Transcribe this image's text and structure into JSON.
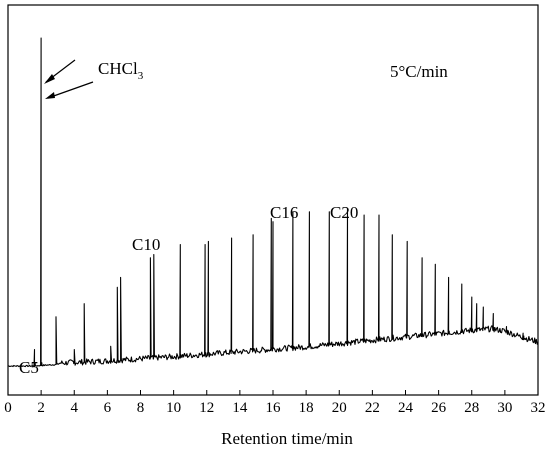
{
  "chart_data": {
    "type": "line",
    "title": "",
    "xlabel": "Retention time/min",
    "ylabel": "",
    "xlim": [
      0,
      32
    ],
    "ylim": [
      0,
      1.0
    ],
    "x_ticks": [
      0,
      2,
      4,
      6,
      8,
      10,
      12,
      14,
      16,
      18,
      20,
      22,
      24,
      26,
      28,
      30,
      32
    ],
    "grid": false,
    "annotations": {
      "condition": "5°C/min",
      "solvent": "CHCl",
      "solvent_subscript": "3",
      "peaks": [
        {
          "label": "C5",
          "x": 1.5
        },
        {
          "label": "C10",
          "x": 8.7
        },
        {
          "label": "C16",
          "x": 17.1
        },
        {
          "label": "C20",
          "x": 20.5
        }
      ]
    },
    "peaks": [
      {
        "x": 1.6,
        "y": 0.05
      },
      {
        "x": 2.0,
        "y": 1.0
      },
      {
        "x": 2.9,
        "y": 0.15
      },
      {
        "x": 4.0,
        "y": 0.05
      },
      {
        "x": 4.6,
        "y": 0.19
      },
      {
        "x": 6.2,
        "y": 0.06
      },
      {
        "x": 6.6,
        "y": 0.24
      },
      {
        "x": 6.8,
        "y": 0.27
      },
      {
        "x": 8.6,
        "y": 0.33
      },
      {
        "x": 8.8,
        "y": 0.34
      },
      {
        "x": 10.4,
        "y": 0.37
      },
      {
        "x": 11.9,
        "y": 0.37
      },
      {
        "x": 12.1,
        "y": 0.38
      },
      {
        "x": 13.5,
        "y": 0.39
      },
      {
        "x": 14.8,
        "y": 0.4
      },
      {
        "x": 15.9,
        "y": 0.45
      },
      {
        "x": 16.0,
        "y": 0.44
      },
      {
        "x": 17.2,
        "y": 0.47
      },
      {
        "x": 18.2,
        "y": 0.47
      },
      {
        "x": 19.4,
        "y": 0.47
      },
      {
        "x": 20.5,
        "y": 0.48
      },
      {
        "x": 21.5,
        "y": 0.46
      },
      {
        "x": 22.4,
        "y": 0.46
      },
      {
        "x": 23.2,
        "y": 0.4
      },
      {
        "x": 24.1,
        "y": 0.38
      },
      {
        "x": 25.0,
        "y": 0.33
      },
      {
        "x": 25.8,
        "y": 0.31
      },
      {
        "x": 26.6,
        "y": 0.27
      },
      {
        "x": 27.4,
        "y": 0.25
      },
      {
        "x": 28.0,
        "y": 0.21
      },
      {
        "x": 28.3,
        "y": 0.19
      },
      {
        "x": 28.7,
        "y": 0.18
      },
      {
        "x": 29.3,
        "y": 0.16
      },
      {
        "x": 30.1,
        "y": 0.12
      },
      {
        "x": 31.1,
        "y": 0.1
      }
    ],
    "baseline": [
      {
        "x": 0.0,
        "y": 0.0
      },
      {
        "x": 1.5,
        "y": 0.0
      },
      {
        "x": 3.0,
        "y": 0.005
      },
      {
        "x": 6.0,
        "y": 0.012
      },
      {
        "x": 10.0,
        "y": 0.025
      },
      {
        "x": 14.0,
        "y": 0.04
      },
      {
        "x": 18.0,
        "y": 0.055
      },
      {
        "x": 22.0,
        "y": 0.075
      },
      {
        "x": 25.0,
        "y": 0.09
      },
      {
        "x": 28.0,
        "y": 0.105
      },
      {
        "x": 29.2,
        "y": 0.11
      },
      {
        "x": 30.0,
        "y": 0.103
      },
      {
        "x": 31.0,
        "y": 0.085
      },
      {
        "x": 32.0,
        "y": 0.07
      }
    ]
  }
}
